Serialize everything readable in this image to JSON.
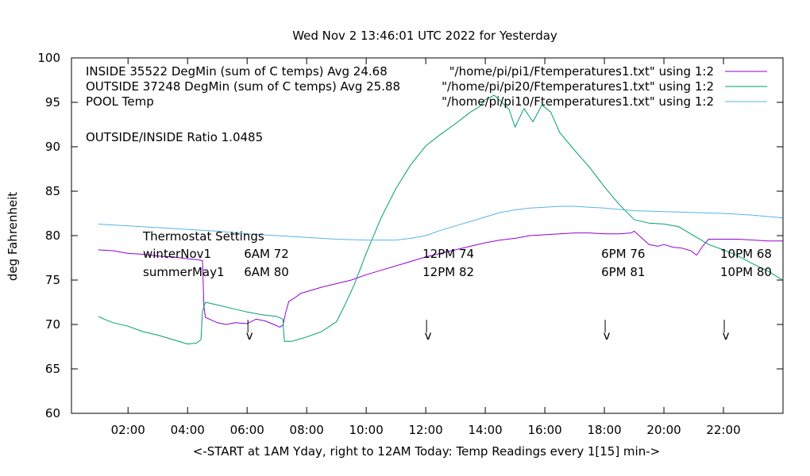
{
  "chart_data": {
    "type": "line",
    "title": "Wed Nov  2 13:46:01 UTC 2022 for Yesterday",
    "xlabel": "<-START at 1AM Yday, right to 12AM Today:  Temp Readings every 1[15] min->",
    "ylabel": "deg Fahrenheit",
    "xlim": [
      0.1,
      24
    ],
    "ylim": [
      60,
      100
    ],
    "y_ticks": [
      60,
      65,
      70,
      75,
      80,
      85,
      90,
      95,
      100
    ],
    "y_tick_labels": [
      "60",
      "65",
      "70",
      "75",
      "80",
      "85",
      "90",
      "95",
      "100"
    ],
    "x_ticks": [
      2,
      4,
      6,
      8,
      10,
      12,
      14,
      16,
      18,
      20,
      22
    ],
    "x_tick_labels": [
      "02:00",
      "04:00",
      "06:00",
      "08:00",
      "10:00",
      "12:00",
      "14:00",
      "16:00",
      "18:00",
      "20:00",
      "22:00"
    ],
    "grid": false,
    "legend_position": "top-right",
    "series": [
      {
        "name": "INSIDE 35522 DegMin (sum of C temps) Avg 24.68",
        "source": "\"/home/pi/pi1/Ftemperatures1.txt\" using 1:2",
        "color": "#9400d3",
        "x": [
          1.0,
          1.5,
          2.0,
          2.5,
          3.0,
          3.5,
          4.0,
          4.3,
          4.5,
          4.55,
          4.6,
          4.8,
          5.0,
          5.3,
          5.6,
          6.0,
          6.3,
          6.6,
          6.9,
          7.1,
          7.2,
          7.3,
          7.4,
          7.6,
          7.8,
          8.0,
          8.5,
          9.0,
          9.5,
          10.0,
          10.5,
          11.0,
          11.5,
          12.0,
          12.5,
          13.0,
          13.5,
          14.0,
          14.5,
          15.0,
          15.5,
          16.0,
          16.5,
          17.0,
          17.5,
          18.0,
          18.5,
          18.9,
          19.0,
          19.2,
          19.5,
          19.8,
          20.0,
          20.3,
          20.6,
          20.9,
          21.1,
          21.3,
          21.5,
          22.0,
          22.5,
          23.0,
          23.5,
          23.99
        ],
        "y": [
          78.4,
          78.3,
          78.0,
          77.9,
          77.7,
          77.6,
          77.4,
          77.3,
          77.2,
          72.0,
          70.8,
          70.5,
          70.2,
          70.0,
          70.2,
          70.1,
          70.6,
          70.4,
          70.0,
          69.7,
          69.9,
          71.4,
          72.6,
          73.0,
          73.5,
          73.7,
          74.2,
          74.6,
          75.0,
          75.6,
          76.1,
          76.6,
          77.1,
          77.6,
          78.0,
          78.4,
          78.8,
          79.2,
          79.5,
          79.7,
          80.0,
          80.1,
          80.2,
          80.3,
          80.3,
          80.2,
          80.2,
          80.3,
          80.5,
          79.9,
          79.0,
          78.8,
          79.0,
          78.7,
          78.6,
          78.3,
          77.8,
          78.8,
          79.6,
          79.6,
          79.6,
          79.5,
          79.4,
          79.4
        ]
      },
      {
        "name": "OUTSIDE 37248 DegMin (sum of C temps) Avg 25.88",
        "source": "\"/home/pi/pi20/Ftemperatures1.txt\" using 1:2",
        "color": "#009e73",
        "x": [
          1.0,
          1.2,
          1.5,
          2.0,
          2.5,
          3.0,
          3.5,
          4.0,
          4.3,
          4.45,
          4.5,
          4.6,
          5.0,
          5.5,
          6.0,
          6.5,
          7.0,
          7.2,
          7.25,
          7.5,
          8.0,
          8.5,
          9.0,
          9.3,
          9.6,
          10.0,
          10.5,
          11.0,
          11.5,
          12.0,
          12.5,
          13.0,
          13.5,
          13.8,
          14.0,
          14.3,
          14.5,
          14.8,
          15.0,
          15.3,
          15.6,
          15.9,
          16.2,
          16.5,
          17.0,
          17.5,
          18.0,
          18.5,
          19.0,
          19.5,
          20.0,
          20.5,
          20.9,
          21.1,
          21.5,
          22.0,
          22.5,
          23.0,
          23.5,
          23.99
        ],
        "y": [
          70.9,
          70.6,
          70.2,
          69.8,
          69.2,
          68.8,
          68.3,
          67.8,
          67.9,
          68.3,
          71.5,
          72.5,
          72.2,
          71.8,
          71.4,
          71.1,
          70.9,
          70.6,
          68.1,
          68.1,
          68.6,
          69.2,
          70.3,
          72.3,
          74.5,
          78.0,
          82.0,
          85.3,
          88.0,
          90.1,
          91.4,
          92.6,
          93.9,
          94.5,
          95.3,
          95.8,
          95.2,
          94.2,
          92.2,
          94.3,
          92.8,
          94.7,
          93.9,
          91.6,
          89.6,
          87.7,
          85.5,
          83.5,
          81.8,
          81.4,
          81.3,
          81.0,
          80.2,
          79.8,
          79.0,
          78.4,
          77.7,
          76.8,
          76.0,
          75.0
        ]
      },
      {
        "name": "POOL Temp",
        "source": "\"/home/pi/pi10/Ftemperatures1.txt\" using 1:2",
        "color": "#56b4e9",
        "x": [
          1.0,
          2.0,
          3.0,
          4.0,
          5.0,
          6.0,
          7.0,
          8.0,
          9.0,
          10.0,
          11.0,
          11.5,
          12.0,
          12.5,
          13.0,
          13.5,
          14.0,
          14.5,
          15.0,
          15.5,
          16.0,
          16.5,
          17.0,
          17.5,
          18.0,
          19.0,
          20.0,
          21.0,
          22.0,
          23.0,
          23.99
        ],
        "y": [
          81.3,
          81.1,
          80.9,
          80.7,
          80.5,
          80.2,
          80.0,
          79.8,
          79.6,
          79.5,
          79.5,
          79.7,
          80.0,
          80.6,
          81.1,
          81.6,
          82.1,
          82.6,
          82.9,
          83.1,
          83.2,
          83.3,
          83.3,
          83.2,
          83.1,
          82.8,
          82.7,
          82.6,
          82.5,
          82.3,
          82.0
        ]
      }
    ],
    "annotations": [
      "OUTSIDE/INSIDE Ratio 1.0485",
      "Thermostat Settings"
    ],
    "thermostat_table": {
      "rows": [
        {
          "label": "winterNov1",
          "values": [
            "6AM 72",
            "12PM 74",
            "6PM 76",
            "10PM 68"
          ]
        },
        {
          "label": "summerMay1",
          "values": [
            "6AM 80",
            "12PM 82",
            "6PM 81",
            "10PM 80"
          ]
        }
      ],
      "columns_x": [
        6,
        12,
        18,
        22
      ]
    },
    "markers": [
      {
        "x": 6,
        "symbol": "v"
      },
      {
        "x": 12,
        "symbol": "v"
      },
      {
        "x": 18,
        "symbol": "v"
      },
      {
        "x": 22,
        "symbol": "v"
      }
    ]
  }
}
